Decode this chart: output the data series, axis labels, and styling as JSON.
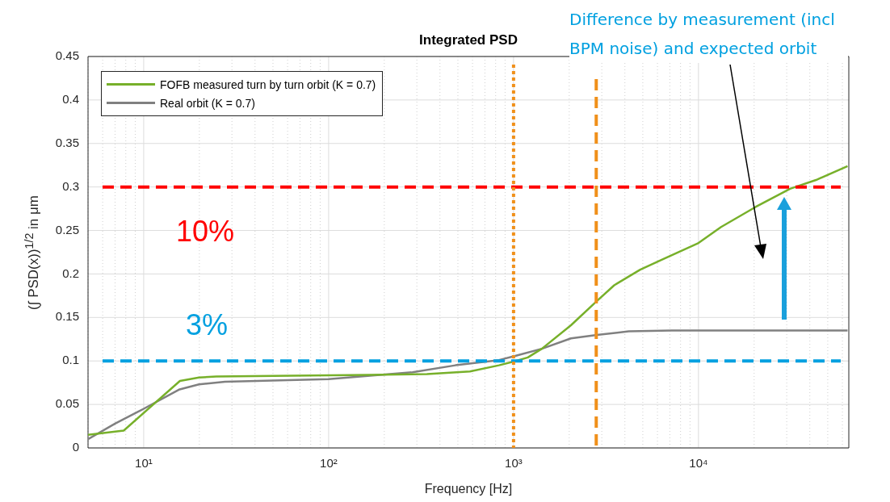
{
  "chart_data": {
    "type": "line",
    "title": "Integrated PSD",
    "xlabel": "Frequency [Hz]",
    "ylabel": "(∫ PSD(x))$^{1/2}$ in μm",
    "annotations": [
      "Difference by measurement (incl BPM noise) and expected orbit",
      "10%",
      "3%"
    ],
    "log": "x",
    "grid": true,
    "legend": "top left",
    "line_style": "solid",
    "marker": "none",
    "xlim": [
      5,
      65000
    ],
    "ylim": [
      0,
      0.45
    ],
    "xticks": [
      {
        "value": 5,
        "label": null
      },
      {
        "value": 6,
        "label": null
      },
      {
        "value": 7,
        "label": null
      },
      {
        "value": 8,
        "label": null
      },
      {
        "value": 9,
        "label": null
      },
      {
        "value": 10,
        "label": "10¹"
      },
      {
        "value": 20,
        "label": null
      },
      {
        "value": 30,
        "label": null
      },
      {
        "value": 40,
        "label": null
      },
      {
        "value": 50,
        "label": null
      },
      {
        "value": 60,
        "label": null
      },
      {
        "value": 70,
        "label": null
      },
      {
        "value": 80,
        "label": null
      },
      {
        "value": 90,
        "label": null
      },
      {
        "value": 100,
        "label": "10²"
      },
      {
        "value": 200,
        "label": null
      },
      {
        "value": 300,
        "label": null
      },
      {
        "value": 400,
        "label": null
      },
      {
        "value": 500,
        "label": null
      },
      {
        "value": 600,
        "label": null
      },
      {
        "value": 700,
        "label": null
      },
      {
        "value": 800,
        "label": null
      },
      {
        "value": 900,
        "label": null
      },
      {
        "value": 1000,
        "label": "10³"
      },
      {
        "value": 2000,
        "label": null
      },
      {
        "value": 3000,
        "label": null
      },
      {
        "value": 4000,
        "label": null
      },
      {
        "value": 5000,
        "label": null
      },
      {
        "value": 6000,
        "label": null
      },
      {
        "value": 7000,
        "label": null
      },
      {
        "value": 8000,
        "label": null
      },
      {
        "value": 9000,
        "label": null
      },
      {
        "value": 10000,
        "label": "10⁴"
      },
      {
        "value": 20000,
        "label": null
      },
      {
        "value": 30000,
        "label": null
      },
      {
        "value": 40000,
        "label": null
      },
      {
        "value": 50000,
        "label": null
      },
      {
        "value": 60000,
        "label": null
      }
    ],
    "yticks": [
      0,
      0.05,
      0.1,
      0.15,
      0.2,
      0.25,
      0.3,
      0.35,
      0.4,
      0.45
    ],
    "ref_lines": [
      {
        "axis": "y",
        "value": 0.3,
        "color": "#ff0000",
        "line_style": "dashed"
      },
      {
        "axis": "y",
        "value": 0.1,
        "color": "#00a0e0",
        "line_style": "dashed"
      },
      {
        "axis": "x",
        "value": 1000,
        "color": "#f0901a",
        "line_style": "dotted"
      },
      {
        "axis": "x",
        "value": 2800,
        "color": "#f0901a",
        "line_style": "dashed"
      }
    ],
    "series": [
      {
        "name": "FOFB measured turn by turn orbit (K = 0.7)",
        "color": "#77b02a",
        "x": [
          5,
          7.8,
          15.7,
          19.9,
          24.7,
          165,
          340,
          581,
          834,
          1030,
          1195,
          1422,
          2044,
          2825,
          3500,
          4840,
          6430,
          9900,
          13250,
          20350,
          31300,
          43200,
          64000
        ],
        "values": [
          0.015,
          0.02,
          0.077,
          0.081,
          0.082,
          0.084,
          0.085,
          0.088,
          0.095,
          0.1,
          0.104,
          0.114,
          0.141,
          0.169,
          0.187,
          0.205,
          0.217,
          0.235,
          0.254,
          0.277,
          0.298,
          0.308,
          0.324
        ]
      },
      {
        "name": "Real orbit (K = 0.7)",
        "color": "#808080",
        "x": [
          5,
          7,
          10,
          15.5,
          19.9,
          27.5,
          100,
          284,
          485,
          834,
          1030,
          1422,
          2044,
          2825,
          4200,
          7180,
          64000
        ],
        "values": [
          0.01,
          0.028,
          0.045,
          0.067,
          0.073,
          0.076,
          0.079,
          0.087,
          0.095,
          0.101,
          0.106,
          0.114,
          0.126,
          0.13,
          0.134,
          0.135,
          0.135
        ]
      }
    ]
  }
}
